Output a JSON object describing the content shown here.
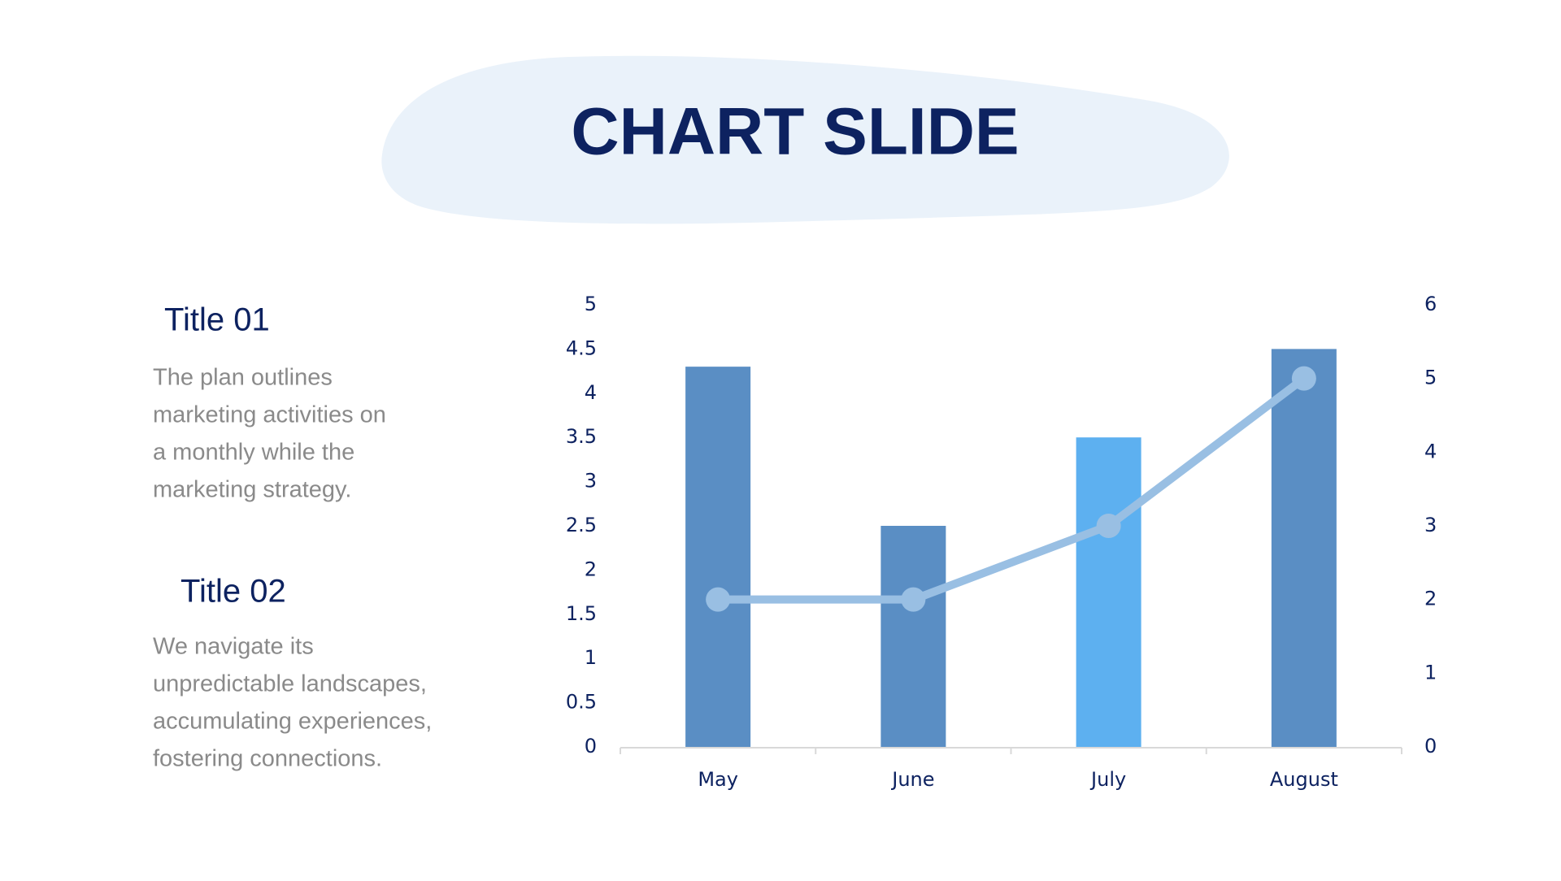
{
  "title": "CHART SLIDE",
  "sections": [
    {
      "heading": "Title 01",
      "lines": [
        "The plan outlines",
        "marketing activities on",
        "a monthly  while the",
        "marketing strategy."
      ]
    },
    {
      "heading": "Title 02",
      "lines": [
        "We navigate its",
        "unpredictable landscapes,",
        "accumulating experiences,",
        "fostering connections."
      ]
    }
  ],
  "chart_data": {
    "type": "bar",
    "categories": [
      "May",
      "June",
      "July",
      "August"
    ],
    "series": [
      {
        "type": "bar",
        "colors": [
          "#5a8ec4",
          "#5a8ec4",
          "#5db0f0",
          "#5a8ec4"
        ],
        "values": [
          4.3,
          2.5,
          3.5,
          4.5
        ]
      },
      {
        "type": "line",
        "axis": "y2",
        "color": "#99bfe3",
        "values": [
          2,
          2,
          3,
          5
        ]
      }
    ],
    "ylim": [
      0,
      5
    ],
    "yticks": [
      0,
      0.5,
      1,
      1.5,
      2,
      2.5,
      3,
      3.5,
      4,
      4.5,
      5
    ],
    "y2lim": [
      0,
      6
    ],
    "y2ticks": [
      0,
      1,
      2,
      3,
      4,
      5,
      6
    ],
    "grid": false
  }
}
